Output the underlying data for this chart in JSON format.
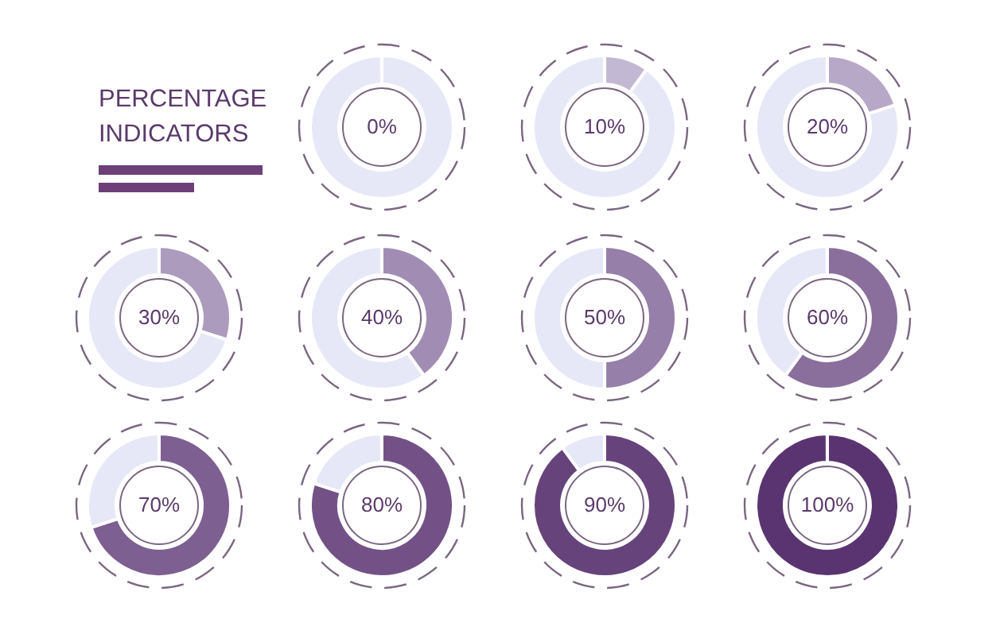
{
  "chart_data": [
    {
      "type": "other",
      "title": "PERCENTAGE INDICATORS"
    },
    {
      "type": "pie",
      "categories": [
        null,
        null
      ],
      "values": [
        0,
        100
      ],
      "colors": [
        "#c9c2dc",
        "#e6e8f7"
      ],
      "annotations": [
        "0%"
      ]
    },
    {
      "type": "donut",
      "categories": [
        null,
        null
      ],
      "values": [
        10,
        90
      ],
      "colors": [
        "#c3b8d3",
        "#e6e8f7"
      ],
      "annotations": [
        "10%"
      ]
    },
    {
      "type": "donut",
      "categories": [
        null,
        null
      ],
      "values": [
        20,
        80
      ],
      "colors": [
        "#b8a8c8",
        "#e6e8f7"
      ],
      "annotations": [
        "20%"
      ]
    },
    {
      "type": "donut",
      "categories": [
        null,
        null
      ],
      "values": [
        30,
        70
      ],
      "colors": [
        "#ad9bbd",
        "#e6e8f7"
      ],
      "annotations": [
        "30%"
      ]
    },
    {
      "type": "donut",
      "categories": [
        null,
        null
      ],
      "values": [
        40,
        60
      ],
      "colors": [
        "#a18db3",
        "#e6e8f7"
      ],
      "annotations": [
        "40%"
      ]
    },
    {
      "type": "donut",
      "categories": [
        null,
        null
      ],
      "values": [
        50,
        50
      ],
      "colors": [
        "#967fa8",
        "#e6e8f7"
      ],
      "annotations": [
        "50%"
      ]
    },
    {
      "type": "donut",
      "categories": [
        null,
        null
      ],
      "values": [
        60,
        40
      ],
      "colors": [
        "#8a6e9c",
        "#e6e8f7"
      ],
      "annotations": [
        "60%"
      ]
    },
    {
      "type": "donut",
      "categories": [
        null,
        null
      ],
      "values": [
        70,
        30
      ],
      "colors": [
        "#7e5f91",
        "#e6e8f7"
      ],
      "annotations": [
        "70%"
      ]
    },
    {
      "type": "donut",
      "categories": [
        null,
        null
      ],
      "values": [
        80,
        20
      ],
      "colors": [
        "#735186",
        "#e6e8f7"
      ],
      "annotations": [
        "80%"
      ]
    },
    {
      "type": "donut",
      "categories": [
        null,
        null
      ],
      "values": [
        90,
        10
      ],
      "colors": [
        "#67437b",
        "#e6e8f7"
      ],
      "annotations": [
        "90%"
      ]
    },
    {
      "type": "pie",
      "categories": [
        null,
        null
      ],
      "values": [
        100,
        0
      ],
      "colors": [
        "#5a3470",
        "#e6e8f7"
      ],
      "annotations": [
        "100%"
      ]
    }
  ]
}
